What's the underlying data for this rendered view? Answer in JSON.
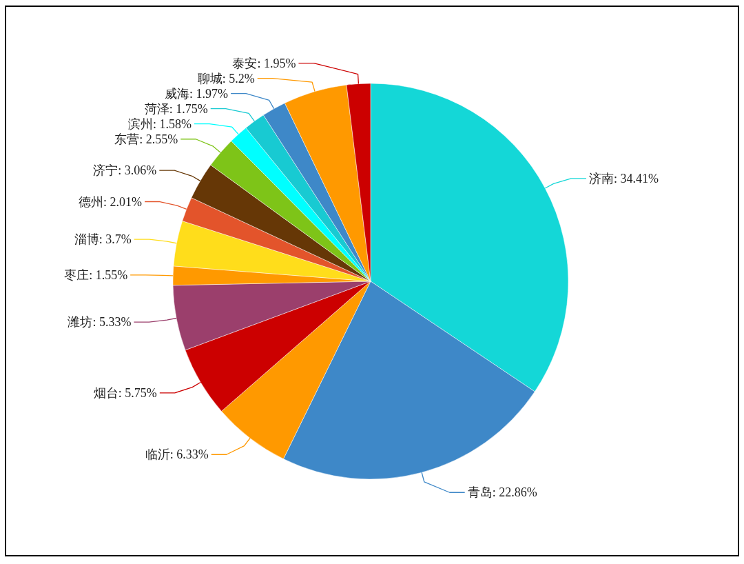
{
  "chart_data": {
    "type": "pie",
    "categories": [
      "济南",
      "青岛",
      "临沂",
      "烟台",
      "潍坊",
      "枣庄",
      "淄博",
      "德州",
      "济宁",
      "东营",
      "滨州",
      "菏泽",
      "威海",
      "聊城",
      "泰安"
    ],
    "values": [
      34.41,
      22.86,
      6.33,
      5.75,
      5.33,
      1.55,
      3.7,
      2.01,
      3.06,
      2.55,
      1.58,
      1.75,
      1.97,
      5.2,
      1.95
    ],
    "value_labels": [
      "34.41%",
      "22.86%",
      "6.33%",
      "5.75%",
      "5.33%",
      "1.55%",
      "3.7%",
      "2.01%",
      "3.06%",
      "2.55%",
      "1.58%",
      "1.75%",
      "1.97%",
      "5.2%",
      "1.95%"
    ],
    "colors": [
      "#14d7d7",
      "#3e88c8",
      "#ff9900",
      "#cc0000",
      "#9b3f6c",
      "#ff9900",
      "#ffdd1b",
      "#e3542b",
      "#663706",
      "#7ec418",
      "#00ffff",
      "#18cad2",
      "#3e88c8",
      "#ff9900",
      "#cc0000"
    ]
  }
}
